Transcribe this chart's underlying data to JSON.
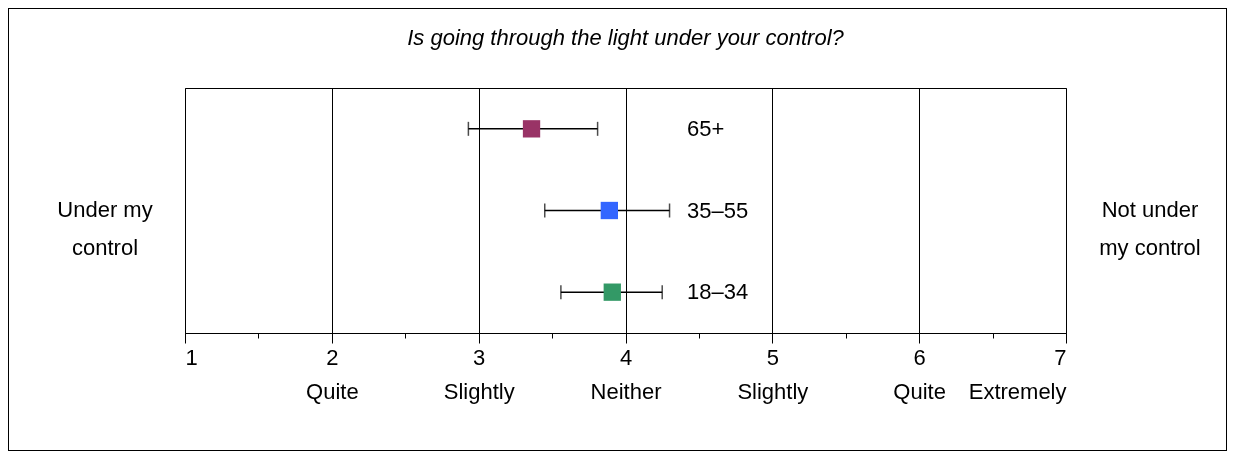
{
  "chart_data": {
    "type": "scatter",
    "orientation": "horizontal",
    "title": "Is going through the light under your control?",
    "categories": [
      "65+",
      "35–55",
      "18–34"
    ],
    "values": [
      3.36,
      3.89,
      3.91
    ],
    "errors": [
      [
        2.93,
        3.81
      ],
      [
        3.45,
        4.3
      ],
      [
        3.56,
        4.25
      ]
    ],
    "colors": [
      "#993366",
      "#3366ff",
      "#339966"
    ],
    "marker": "square",
    "grid": "x",
    "tick_labels": "x",
    "xlim": [
      1,
      7
    ],
    "xticks": [
      1,
      {
        "value": 1.5,
        "label": null
      },
      {
        "value": 2,
        "label": "2\nQuite"
      },
      {
        "value": 2.5,
        "label": null
      },
      {
        "value": 3,
        "label": "3\nSlightly"
      },
      {
        "value": 3.5,
        "label": null
      },
      {
        "value": 4,
        "label": "4\nNeither"
      },
      {
        "value": 4.5,
        "label": null
      },
      {
        "value": 5,
        "label": "5\nSlightly"
      },
      {
        "value": 5.5,
        "label": null
      },
      {
        "value": 6,
        "label": "6\nQuite"
      },
      {
        "value": 6.5,
        "label": null
      },
      {
        "value": 7,
        "label": "7\nExtremely"
      }
    ],
    "annotations": [
      "Under my\ncontrol",
      "Not under\nmy control"
    ]
  }
}
